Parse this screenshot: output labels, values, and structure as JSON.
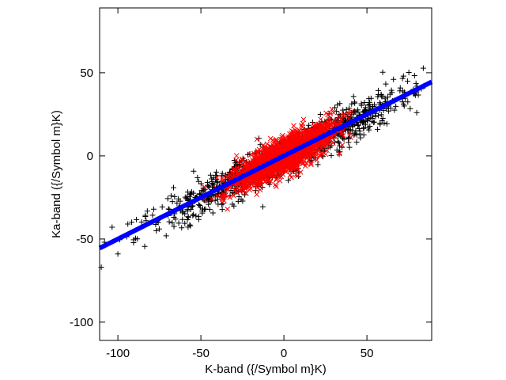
{
  "chart_data": {
    "type": "scatter",
    "xlabel": "K-band ({/Symbol m}K)",
    "ylabel": "Ka-band ({/Symbol m}K)",
    "xlim": [
      -111,
      89
    ],
    "ylim": [
      -111,
      89
    ],
    "xticks": [
      -100,
      -50,
      0,
      50
    ],
    "yticks": [
      -100,
      -50,
      0,
      50
    ],
    "xtick_labels": [
      "-100",
      "-50",
      "0",
      "50"
    ],
    "ytick_labels": [
      "-100",
      "-50",
      "0",
      "50"
    ],
    "grid": false,
    "series": [
      {
        "marker": "plus",
        "color": "#000000",
        "distribution": {
          "count": 1200,
          "x_mean": 0,
          "x_sd": 36,
          "x_range": [
            -110,
            85
          ],
          "slope": 0.5,
          "y_scatter_sd": 6
        },
        "points": [
          [
            -110,
            -67
          ],
          [
            -100,
            -59
          ],
          [
            -94,
            -41
          ],
          [
            -83,
            -39
          ],
          [
            72,
            48
          ],
          [
            66,
            46
          ],
          [
            78,
            40
          ],
          [
            85,
            42
          ],
          [
            63,
            27
          ],
          [
            80,
            26
          ]
        ]
      },
      {
        "marker": "x",
        "color": "#ff0000",
        "distribution": {
          "count": 2000,
          "x_mean": 0,
          "x_sd": 14,
          "x_range": [
            -50,
            45
          ],
          "slope": 0.5,
          "y_scatter_sd": 5
        },
        "points": [
          [
            -34,
            -32
          ],
          [
            -40,
            -24
          ],
          [
            -36,
            -27
          ],
          [
            30,
            26
          ],
          [
            34,
            18
          ],
          [
            29,
            28
          ]
        ]
      },
      {
        "marker": "fit-line",
        "color": "#0000ff",
        "x": [
          -111,
          89
        ],
        "y": [
          -55.5,
          44.5
        ]
      }
    ]
  }
}
